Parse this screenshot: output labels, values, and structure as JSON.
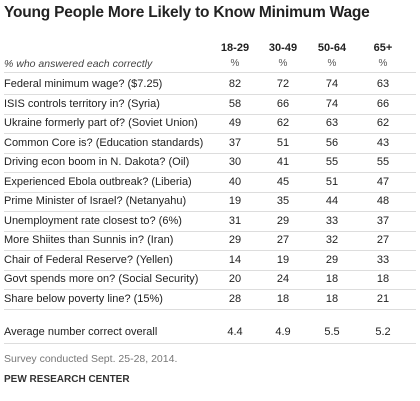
{
  "header": {
    "title": "Young People More Likely to Know Minimum Wage",
    "subtitle": "% who answered each correctly"
  },
  "table": {
    "columns": [
      "18-29",
      "30-49",
      "50-64",
      "65+"
    ],
    "units": [
      "%",
      "%",
      "%",
      "%"
    ],
    "rows": [
      {
        "label": "Federal minimum wage? ($7.25)",
        "values": [
          82,
          72,
          74,
          63
        ]
      },
      {
        "label": "ISIS controls territory in? (Syria)",
        "values": [
          58,
          66,
          74,
          66
        ]
      },
      {
        "label": "Ukraine formerly part of? (Soviet Union)",
        "values": [
          49,
          62,
          63,
          62
        ]
      },
      {
        "label": "Common Core is? (Education standards)",
        "values": [
          37,
          51,
          56,
          43
        ]
      },
      {
        "label": "Driving econ boom in N. Dakota? (Oil)",
        "values": [
          30,
          41,
          55,
          55
        ]
      },
      {
        "label": "Experienced Ebola outbreak? (Liberia)",
        "values": [
          40,
          45,
          51,
          47
        ]
      },
      {
        "label": "Prime Minister of Israel? (Netanyahu)",
        "values": [
          19,
          35,
          44,
          48
        ]
      },
      {
        "label": "Unemployment rate closest to? (6%)",
        "values": [
          31,
          29,
          33,
          37
        ]
      },
      {
        "label": "More Shiites than Sunnis in? (Iran)",
        "values": [
          29,
          27,
          32,
          27
        ]
      },
      {
        "label": "Chair of Federal Reserve? (Yellen)",
        "values": [
          14,
          19,
          29,
          33
        ]
      },
      {
        "label": "Govt spends more on? (Social Security)",
        "values": [
          20,
          24,
          18,
          18
        ]
      },
      {
        "label": "Share below poverty line? (15%)",
        "values": [
          28,
          18,
          18,
          21
        ]
      }
    ],
    "summary": {
      "label": "Average number correct overall",
      "values": [
        4.4,
        4.9,
        5.5,
        5.2
      ]
    }
  },
  "footer": {
    "note": "Survey conducted Sept. 25-28, 2014.",
    "source": "PEW RESEARCH CENTER"
  }
}
